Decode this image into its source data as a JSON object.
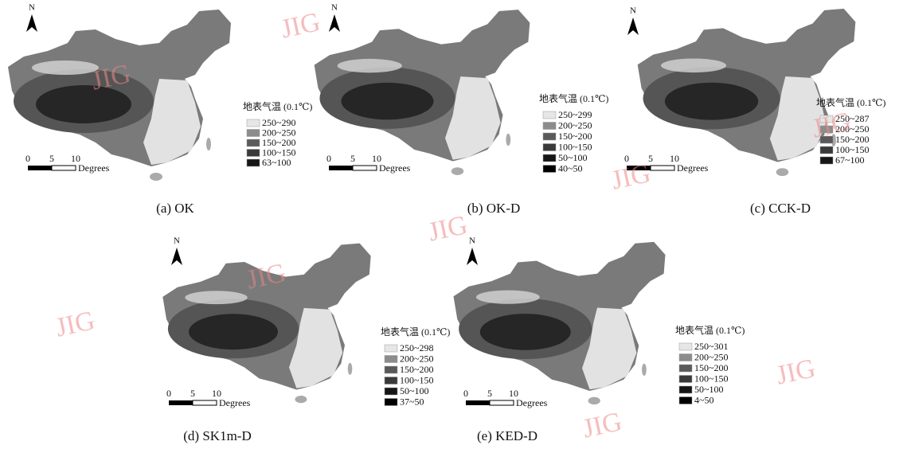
{
  "panels": [
    {
      "caption": "(a) OK",
      "north": "N",
      "legend_title": "地表气温 (0.1℃)",
      "legend_items": [
        "250~290",
        "200~250",
        "150~200",
        "100~150",
        "63~100"
      ],
      "scale_labels": [
        "0",
        "5",
        "10"
      ],
      "scale_unit": "Degrees"
    },
    {
      "caption": "(b) OK-D",
      "north": "N",
      "legend_title": "地表气温 (0.1℃)",
      "legend_items": [
        "250~299",
        "200~250",
        "150~200",
        "100~150",
        "50~100",
        "40~50"
      ],
      "scale_labels": [
        "0",
        "5",
        "10"
      ],
      "scale_unit": "Degrees"
    },
    {
      "caption": "(c) CCK-D",
      "north": "N",
      "legend_title": "地表气温 (0.1℃)",
      "legend_items": [
        "250~287",
        "200~250",
        "150~200",
        "100~150",
        "67~100"
      ],
      "scale_labels": [
        "0",
        "5",
        "10"
      ],
      "scale_unit": "Degrees"
    },
    {
      "caption": "(d) SK1m-D",
      "north": "N",
      "legend_title": "地表气温 (0.1℃)",
      "legend_items": [
        "250~298",
        "200~250",
        "150~200",
        "100~150",
        "50~100",
        "37~50"
      ],
      "scale_labels": [
        "0",
        "5",
        "10"
      ],
      "scale_unit": "Degrees"
    },
    {
      "caption": "(e) KED-D",
      "north": "N",
      "legend_title": "地表气温 (0.1℃)",
      "legend_items": [
        "250~301",
        "200~250",
        "150~200",
        "100~150",
        "50~100",
        "4~50"
      ],
      "scale_labels": [
        "0",
        "5",
        "10"
      ],
      "scale_unit": "Degrees"
    }
  ],
  "watermarks": [
    "JIG",
    "JIG",
    "JIG",
    "JIG",
    "JIG",
    "JIG",
    "JIG",
    "JIG",
    "JIG"
  ]
}
